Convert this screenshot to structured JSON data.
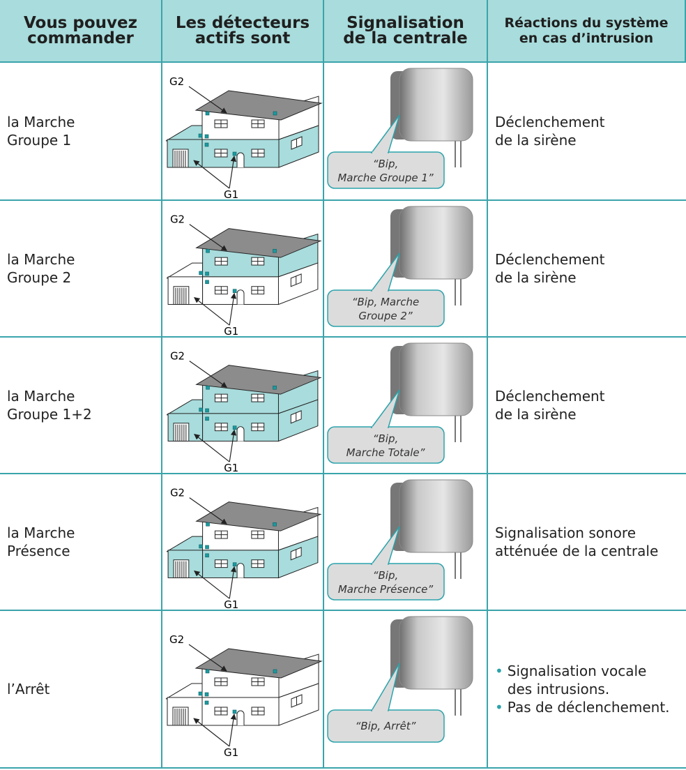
{
  "header": [
    [
      "Vous pouvez",
      "commander"
    ],
    [
      "Les détecteurs",
      "actifs sont"
    ],
    [
      "Signalisation",
      "de la centrale"
    ],
    [
      "Réactions du système",
      "en cas d’intrusion"
    ]
  ],
  "rows": [
    {
      "command": [
        "la Marche",
        "Groupe 1"
      ],
      "g2": "G2",
      "g1": "G1",
      "bubble": [
        "“Bip,",
        "Marche Groupe 1”"
      ],
      "reaction": [
        "Déclenchement",
        "de la sirène"
      ]
    },
    {
      "command": [
        "la Marche",
        "Groupe 2"
      ],
      "g2": "G2",
      "g1": "G1",
      "bubble": [
        "“Bip, Marche",
        "Groupe 2”"
      ],
      "reaction": [
        "Déclenchement",
        "de la sirène"
      ]
    },
    {
      "command": [
        "la Marche",
        "Groupe 1+2"
      ],
      "g2": "G2",
      "g1": "G1",
      "bubble": [
        "“Bip,",
        "Marche Totale”"
      ],
      "reaction": [
        "Déclenchement",
        "de la sirène"
      ]
    },
    {
      "command": [
        "la Marche",
        "Présence"
      ],
      "g2": "G2",
      "g1": "G1",
      "bubble": [
        "“Bip,",
        "Marche Présence”"
      ],
      "reaction": [
        "Signalisation sonore",
        "atténuée de la centrale"
      ]
    },
    {
      "command": [
        "l’Arrêt"
      ],
      "g2": "G2",
      "g1": "G1",
      "bubble": [
        "“Bip, Arrêt”"
      ],
      "bullets": [
        [
          "Signalisation vocale",
          "des intrusions."
        ],
        [
          "Pas de déclenchement."
        ]
      ]
    }
  ]
}
